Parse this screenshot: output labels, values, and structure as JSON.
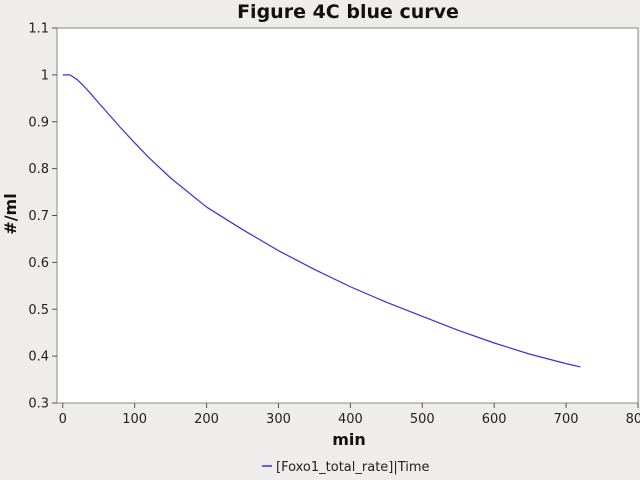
{
  "chart_data": {
    "type": "line",
    "title": "Figure 4C blue curve",
    "xlabel": "min",
    "ylabel": "#/ml",
    "xlim": [
      -8,
      800
    ],
    "ylim": [
      0.3,
      1.1
    ],
    "xticks": [
      "0",
      "100",
      "200",
      "300",
      "400",
      "500",
      "600",
      "700",
      "800"
    ],
    "yticks": [
      "0.3",
      "0.4",
      "0.5",
      "0.6",
      "0.7",
      "0.8",
      "0.9",
      "1",
      "1.1"
    ],
    "grid": false,
    "legend_position": "bottom-center",
    "series": [
      {
        "name": "[Foxo1_total_rate]|Time",
        "color": "#3333dd",
        "x": [
          0,
          10,
          20,
          30,
          40,
          50,
          60,
          80,
          100,
          120,
          150,
          200,
          250,
          300,
          350,
          400,
          450,
          500,
          550,
          600,
          650,
          700,
          720
        ],
        "y": [
          1.0,
          1.0,
          0.99,
          0.975,
          0.958,
          0.94,
          0.923,
          0.888,
          0.855,
          0.823,
          0.78,
          0.718,
          0.67,
          0.625,
          0.585,
          0.548,
          0.515,
          0.485,
          0.455,
          0.428,
          0.404,
          0.384,
          0.377
        ]
      }
    ]
  }
}
